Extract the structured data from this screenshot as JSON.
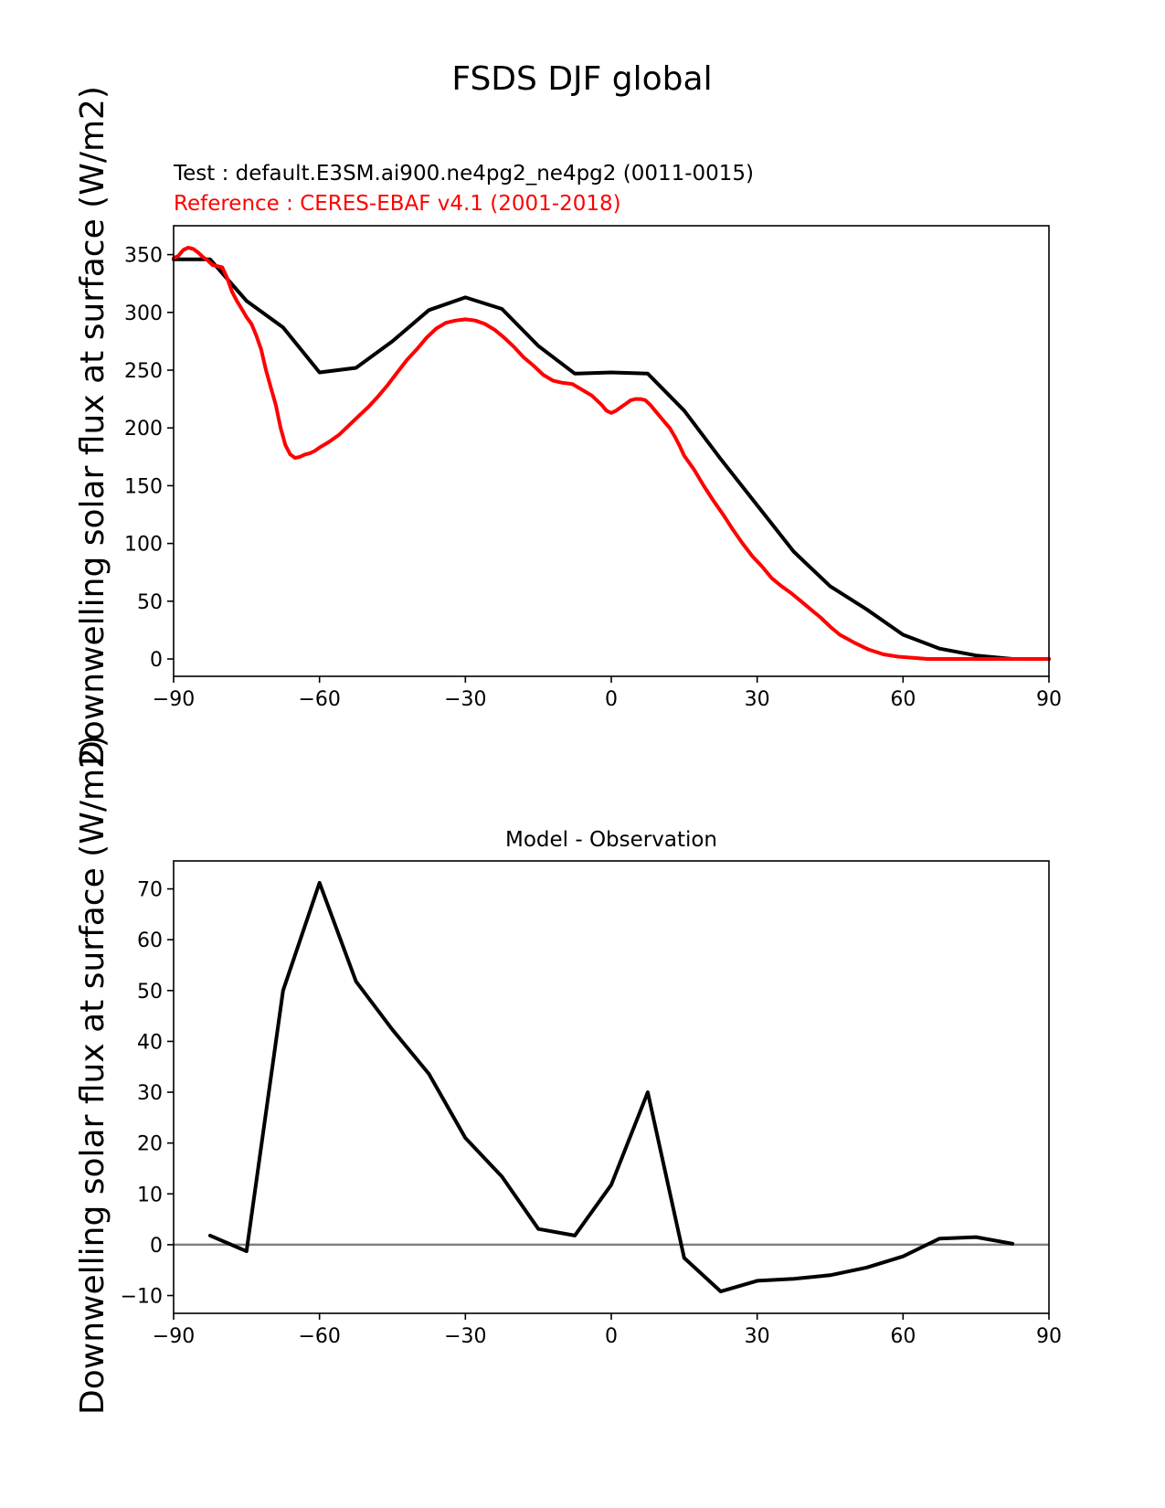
{
  "figure": {
    "title": "FSDS DJF global",
    "test_label": "Test : default.E3SM.ai900.ne4pg2_ne4pg2 (0011-0015)",
    "reference_label": "Reference : CERES-EBAF v4.1 (2001-2018)",
    "ylabel_top": "Downwelling solar flux at surface (W/m2)",
    "ylabel_bottom": "Downwelling solar flux at surface (W/m2)",
    "colors": {
      "test": "#000000",
      "reference": "#ff0000",
      "zero_line": "#808080",
      "axes": "#000000"
    }
  },
  "chart_data": [
    {
      "type": "line",
      "title": "",
      "xlabel": "",
      "ylabel": "Downwelling solar flux at surface (W/m2)",
      "xlim": [
        -90,
        90
      ],
      "ylim": [
        -15,
        375
      ],
      "xticks": [
        -90,
        -60,
        -30,
        0,
        30,
        60,
        90
      ],
      "xtick_labels": [
        "−90",
        "−60",
        "−30",
        "0",
        "30",
        "60",
        "90"
      ],
      "yticks": [
        0,
        50,
        100,
        150,
        200,
        250,
        300,
        350
      ],
      "ytick_labels": [
        "0",
        "50",
        "100",
        "150",
        "200",
        "250",
        "300",
        "350"
      ],
      "grid": false,
      "series": [
        {
          "role": "test",
          "color": "#000000",
          "x": [
            -90,
            -82.5,
            -75,
            -67.5,
            -60,
            -52.5,
            -45,
            -37.5,
            -30,
            -22.5,
            -15,
            -7.5,
            0,
            7.5,
            15,
            22.5,
            30,
            37.5,
            45,
            52.5,
            60,
            67.5,
            75,
            82.5,
            90
          ],
          "y": [
            346,
            346,
            310,
            287,
            248,
            252,
            275,
            302,
            313,
            303,
            271,
            247,
            248,
            247,
            215,
            173,
            133,
            93,
            63,
            43,
            21,
            9,
            3,
            0,
            0
          ]
        },
        {
          "role": "reference",
          "color": "#ff0000",
          "x": [
            -90,
            -89,
            -88,
            -87,
            -86,
            -85,
            -84,
            -83,
            -82,
            -81,
            -80,
            -79,
            -78,
            -77,
            -76,
            -75,
            -74,
            -73,
            -72,
            -71,
            -70,
            -69,
            -68,
            -67,
            -66,
            -65,
            -64,
            -63,
            -62,
            -61,
            -60,
            -58,
            -56,
            -54,
            -52,
            -50,
            -48,
            -46,
            -44,
            -42,
            -40,
            -38,
            -36,
            -34,
            -32,
            -30,
            -28,
            -26,
            -24,
            -22,
            -20,
            -18,
            -16,
            -14,
            -12,
            -10,
            -8,
            -6,
            -4,
            -2,
            -1,
            0,
            1,
            2,
            3,
            4,
            5,
            6,
            7,
            8,
            9,
            10,
            11,
            12,
            13,
            14,
            15,
            17,
            19,
            21,
            23,
            25,
            27,
            29,
            31,
            33,
            35,
            37,
            39,
            41,
            43,
            45,
            47,
            50,
            53,
            56,
            59,
            62,
            65,
            68,
            71,
            74,
            77,
            80,
            83,
            86,
            90
          ],
          "y": [
            347,
            349,
            354,
            356,
            355,
            352,
            348,
            345,
            341,
            340,
            339,
            330,
            318,
            310,
            303,
            296,
            290,
            280,
            268,
            250,
            235,
            220,
            200,
            185,
            177,
            174,
            175,
            177,
            178,
            180,
            183,
            188,
            194,
            202,
            210,
            218,
            227,
            237,
            248,
            259,
            268,
            278,
            286,
            291,
            293,
            294,
            293,
            290,
            285,
            278,
            270,
            261,
            254,
            246,
            241,
            239,
            238,
            233,
            228,
            220,
            215,
            213,
            215,
            218,
            221,
            224,
            225,
            225,
            224,
            220,
            215,
            210,
            205,
            200,
            193,
            185,
            176,
            164,
            150,
            137,
            125,
            112,
            100,
            89,
            80,
            70,
            63,
            57,
            50,
            43,
            36,
            28,
            21,
            14,
            8,
            4,
            2,
            1,
            0,
            0,
            0,
            0,
            0,
            0,
            0,
            0,
            0
          ]
        }
      ]
    },
    {
      "type": "line",
      "title": "Model - Observation",
      "xlabel": "",
      "ylabel": "Downwelling solar flux at surface (W/m2)",
      "xlim": [
        -90,
        90
      ],
      "ylim": [
        -13.5,
        75.5
      ],
      "xticks": [
        -90,
        -60,
        -30,
        0,
        30,
        60,
        90
      ],
      "xtick_labels": [
        "−90",
        "−60",
        "−30",
        "0",
        "30",
        "60",
        "90"
      ],
      "yticks": [
        -10,
        0,
        10,
        20,
        30,
        40,
        50,
        60,
        70
      ],
      "ytick_labels": [
        "−10",
        "0",
        "10",
        "20",
        "30",
        "40",
        "50",
        "60",
        "70"
      ],
      "grid": false,
      "zero_line": {
        "y": 0,
        "color": "#808080"
      },
      "series": [
        {
          "role": "difference",
          "color": "#000000",
          "x": [
            -82.5,
            -75,
            -67.5,
            -60,
            -52.5,
            -45,
            -37.5,
            -30,
            -22.5,
            -15,
            -7.5,
            0,
            7.5,
            15,
            22.5,
            30,
            37.5,
            45,
            52.5,
            60,
            67.5,
            75,
            82.5
          ],
          "y": [
            1.8,
            -1.3,
            50,
            71.2,
            51.8,
            42.3,
            33.6,
            21,
            13.4,
            3.1,
            1.8,
            11.8,
            30,
            -2.6,
            -9.2,
            -7.1,
            -6.7,
            -6,
            -4.5,
            -2.3,
            1.2,
            1.5,
            0.2
          ]
        }
      ]
    }
  ]
}
